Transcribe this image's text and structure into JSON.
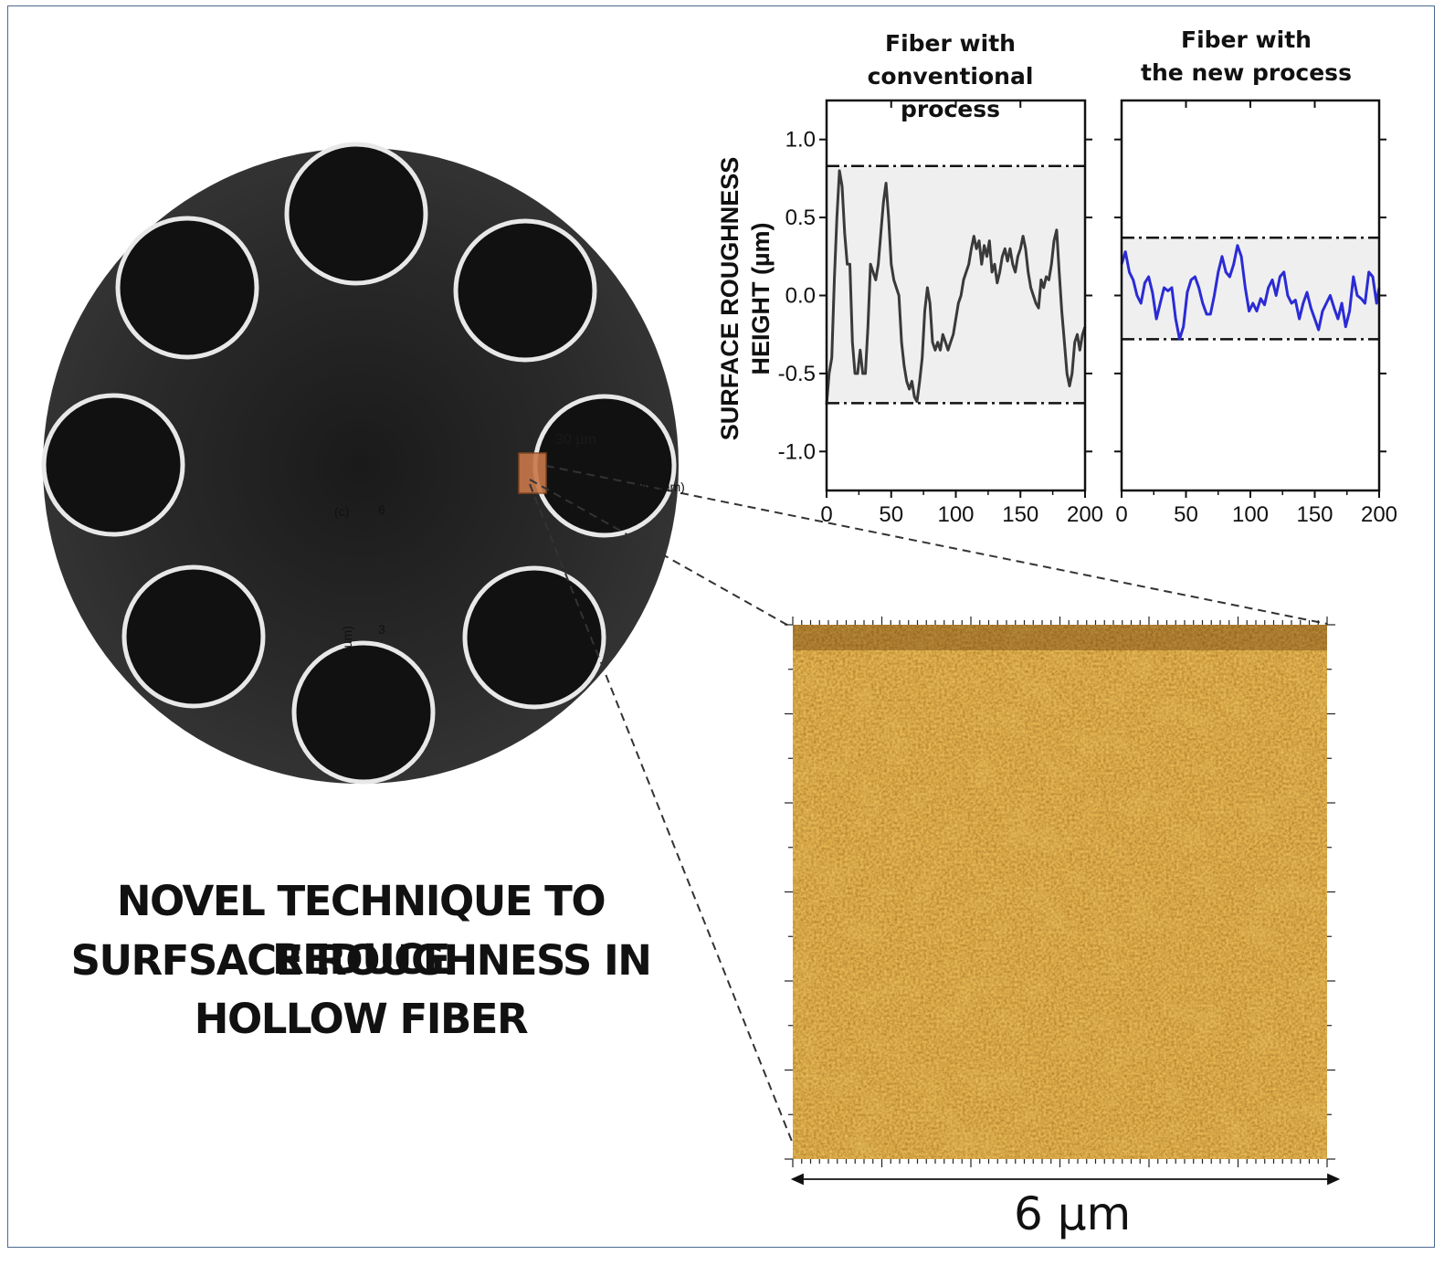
{
  "headline": {
    "line1": "NOVEL TECHNIQUE TO REDUCE",
    "line2": "SURFSACE ROUGHNESS IN",
    "line3": "HOLLOW FIBER"
  },
  "fiber_overlay": {
    "scale_label": "30 µm",
    "panel_label": "(c)",
    "dh_label": "Δh (nm)",
    "y_axis_label": "y (µm)",
    "y_ticks": [
      "6",
      "3",
      "0"
    ]
  },
  "afm_scan": {
    "scale_label": "6 µm",
    "colors": {
      "dark": "#6b3505",
      "light": "#c8921f"
    }
  },
  "y_axis_label": {
    "line1": "SURFACE ROUGHNESS",
    "line2": "HEIGHT (µm)"
  },
  "chart_data": [
    {
      "type": "line",
      "title_line1": "Fiber with",
      "title_line2": "conventional process",
      "ylabel": "SURFACE ROUGHNESS HEIGHT (µm)",
      "xlim": [
        0,
        200
      ],
      "ylim": [
        -1.25,
        1.25
      ],
      "xticks": [
        "0",
        "50",
        "100",
        "150",
        "200"
      ],
      "yticks": [
        "1.0",
        "0.5",
        "0.0",
        "-0.5",
        "-1.0"
      ],
      "band": [
        -0.69,
        0.83
      ],
      "color": "#3a3a3a",
      "x": [
        0,
        2,
        4,
        6,
        8,
        10,
        12,
        14,
        16,
        18,
        20,
        22,
        24,
        26,
        28,
        30,
        32,
        34,
        36,
        38,
        40,
        42,
        44,
        46,
        48,
        50,
        52,
        54,
        56,
        58,
        60,
        62,
        64,
        66,
        68,
        70,
        72,
        74,
        76,
        78,
        80,
        82,
        84,
        86,
        88,
        90,
        92,
        94,
        96,
        98,
        100,
        102,
        104,
        106,
        108,
        110,
        112,
        114,
        116,
        118,
        120,
        122,
        124,
        126,
        128,
        130,
        132,
        134,
        136,
        138,
        140,
        142,
        144,
        146,
        148,
        150,
        152,
        154,
        156,
        158,
        160,
        162,
        164,
        166,
        168,
        170,
        172,
        174,
        176,
        178,
        180,
        182,
        184,
        186,
        188,
        190,
        192,
        194,
        196,
        198,
        200
      ],
      "y": [
        -0.7,
        -0.5,
        -0.4,
        0.1,
        0.5,
        0.8,
        0.7,
        0.4,
        0.2,
        0.2,
        -0.3,
        -0.5,
        -0.5,
        -0.35,
        -0.5,
        -0.5,
        -0.2,
        0.2,
        0.15,
        0.1,
        0.2,
        0.4,
        0.6,
        0.72,
        0.5,
        0.2,
        0.1,
        0.05,
        0.0,
        -0.3,
        -0.45,
        -0.55,
        -0.6,
        -0.55,
        -0.65,
        -0.68,
        -0.55,
        -0.4,
        -0.1,
        0.05,
        -0.05,
        -0.3,
        -0.35,
        -0.3,
        -0.35,
        -0.25,
        -0.3,
        -0.35,
        -0.3,
        -0.25,
        -0.15,
        -0.05,
        0.0,
        0.1,
        0.15,
        0.2,
        0.3,
        0.38,
        0.3,
        0.35,
        0.2,
        0.32,
        0.25,
        0.35,
        0.15,
        0.2,
        0.08,
        0.15,
        0.25,
        0.3,
        0.22,
        0.3,
        0.2,
        0.15,
        0.25,
        0.3,
        0.38,
        0.3,
        0.15,
        0.05,
        0.0,
        -0.05,
        -0.08,
        0.1,
        0.05,
        0.12,
        0.1,
        0.2,
        0.35,
        0.42,
        0.15,
        -0.1,
        -0.3,
        -0.5,
        -0.58,
        -0.5,
        -0.3,
        -0.25,
        -0.35,
        -0.25,
        -0.2
      ]
    },
    {
      "type": "line",
      "title_line1": "Fiber with",
      "title_line2": "the new process",
      "xlim": [
        0,
        200
      ],
      "ylim": [
        -1.25,
        1.25
      ],
      "xticks": [
        "0",
        "50",
        "100",
        "150",
        "200"
      ],
      "band": [
        -0.28,
        0.37
      ],
      "color": "#2b2bd6",
      "x": [
        0,
        3,
        6,
        9,
        12,
        15,
        18,
        21,
        24,
        27,
        30,
        33,
        36,
        39,
        42,
        45,
        48,
        51,
        54,
        57,
        60,
        63,
        66,
        69,
        72,
        75,
        78,
        81,
        84,
        87,
        90,
        93,
        96,
        99,
        102,
        105,
        108,
        111,
        114,
        117,
        120,
        123,
        126,
        129,
        132,
        135,
        138,
        141,
        144,
        147,
        150,
        153,
        156,
        159,
        162,
        165,
        168,
        171,
        174,
        177,
        180,
        183,
        186,
        189,
        192,
        195,
        198,
        200
      ],
      "y": [
        0.2,
        0.28,
        0.15,
        0.1,
        0.0,
        -0.05,
        0.08,
        0.12,
        0.02,
        -0.15,
        -0.05,
        0.05,
        0.03,
        0.05,
        -0.15,
        -0.28,
        -0.2,
        0.02,
        0.1,
        0.12,
        0.05,
        -0.05,
        -0.12,
        -0.12,
        0.0,
        0.15,
        0.25,
        0.15,
        0.12,
        0.2,
        0.32,
        0.25,
        0.05,
        -0.1,
        -0.05,
        -0.1,
        -0.02,
        -0.06,
        0.05,
        0.1,
        0.0,
        0.12,
        0.15,
        0.0,
        -0.05,
        -0.03,
        -0.15,
        -0.05,
        0.02,
        -0.08,
        -0.15,
        -0.22,
        -0.1,
        -0.05,
        0.0,
        -0.08,
        -0.15,
        -0.05,
        -0.2,
        -0.1,
        0.12,
        0.0,
        -0.02,
        -0.05,
        0.15,
        0.12,
        -0.05,
        0.05
      ]
    }
  ]
}
